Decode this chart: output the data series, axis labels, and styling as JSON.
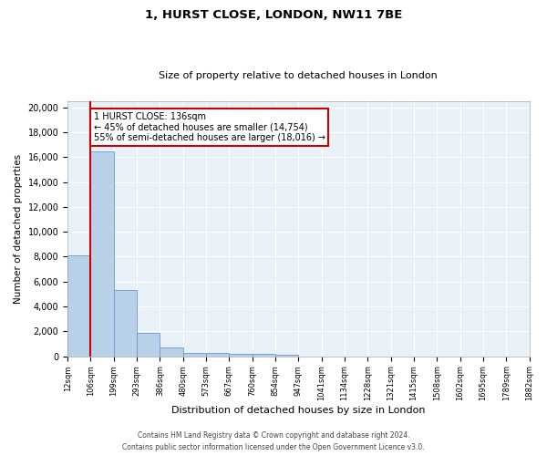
{
  "title1": "1, HURST CLOSE, LONDON, NW11 7BE",
  "title2": "Size of property relative to detached houses in London",
  "xlabel": "Distribution of detached houses by size in London",
  "ylabel": "Number of detached properties",
  "bin_labels": [
    "12sqm",
    "106sqm",
    "199sqm",
    "293sqm",
    "386sqm",
    "480sqm",
    "573sqm",
    "667sqm",
    "760sqm",
    "854sqm",
    "947sqm",
    "1041sqm",
    "1134sqm",
    "1228sqm",
    "1321sqm",
    "1415sqm",
    "1508sqm",
    "1602sqm",
    "1695sqm",
    "1789sqm",
    "1882sqm"
  ],
  "bar_heights": [
    8100,
    16500,
    5300,
    1850,
    700,
    300,
    230,
    190,
    170,
    150,
    0,
    0,
    0,
    0,
    0,
    0,
    0,
    0,
    0,
    0
  ],
  "bar_color": "#b8d0e8",
  "bar_edge_color": "#6699cc",
  "bg_color": "#e8f0f8",
  "grid_color": "#ffffff",
  "red_line_x": 1,
  "annotation_text": "1 HURST CLOSE: 136sqm\n← 45% of detached houses are smaller (14,754)\n55% of semi-detached houses are larger (18,016) →",
  "annotation_box_color": "#ffffff",
  "annotation_box_edge_color": "#cc0000",
  "ylim": [
    0,
    20500
  ],
  "yticks": [
    0,
    2000,
    4000,
    6000,
    8000,
    10000,
    12000,
    14000,
    16000,
    18000,
    20000
  ],
  "footer1": "Contains HM Land Registry data © Crown copyright and database right 2024.",
  "footer2": "Contains public sector information licensed under the Open Government Licence v3.0."
}
